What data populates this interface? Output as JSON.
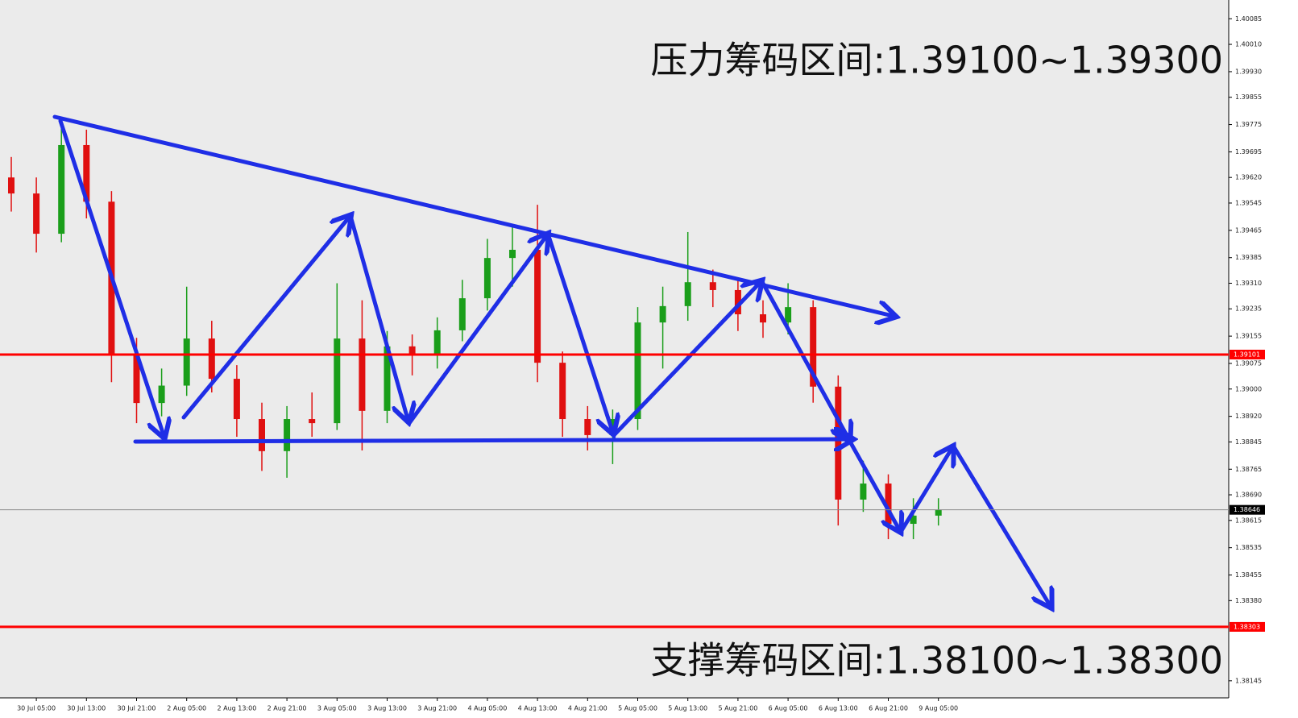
{
  "chart_data": {
    "type": "candlestick",
    "annotations": [
      "压力筹码区间:1.39100~1.39300",
      "支撑筹码区间:1.38100~1.38300"
    ],
    "categories": [
      null,
      "30 Jul 05:00",
      null,
      "30 Jul 13:00",
      null,
      "30 Jul 21:00",
      null,
      "2 Aug 05:00",
      null,
      "2 Aug 13:00",
      null,
      "2 Aug 21:00",
      null,
      "3 Aug 05:00",
      null,
      "3 Aug 13:00",
      null,
      "3 Aug 21:00",
      null,
      "4 Aug 05:00",
      null,
      "4 Aug 13:00",
      null,
      "4 Aug 21:00",
      null,
      "5 Aug 05:00",
      null,
      "5 Aug 13:00",
      null,
      "5 Aug 21:00",
      null,
      "6 Aug 05:00",
      null,
      "6 Aug 13:00",
      null,
      "6 Aug 21:00",
      null,
      "9 Aug 05:00"
    ],
    "open": [
      1.3962,
      1.39573,
      1.39455,
      1.39715,
      1.39549,
      1.39101,
      1.38959,
      1.3901,
      1.39148,
      1.3903,
      1.38912,
      1.38818,
      1.38912,
      1.389,
      1.39148,
      1.38936,
      1.39125,
      1.39101,
      1.39172,
      1.39266,
      1.39384,
      1.39408,
      1.39077,
      1.38912,
      1.38865,
      1.38912,
      1.39195,
      1.39243,
      1.39313,
      1.3929,
      1.39219,
      1.39195,
      1.3924,
      1.39007,
      1.38676,
      1.38723,
      1.38605,
      1.38629
    ],
    "high": [
      1.3968,
      1.3962,
      1.3979,
      1.3976,
      1.3958,
      1.3915,
      1.3906,
      1.393,
      1.392,
      1.3907,
      1.3896,
      1.3895,
      1.3899,
      1.3931,
      1.3926,
      1.3917,
      1.3916,
      1.3921,
      1.3932,
      1.3944,
      1.3948,
      1.3954,
      1.3911,
      1.3895,
      1.3894,
      1.3924,
      1.393,
      1.3946,
      1.3935,
      1.3932,
      1.3926,
      1.3931,
      1.3926,
      1.3904,
      1.3879,
      1.3875,
      1.3868,
      1.3868
    ],
    "low": [
      1.3952,
      1.394,
      1.3943,
      1.395,
      1.3902,
      1.389,
      1.3892,
      1.3898,
      1.3899,
      1.3886,
      1.3876,
      1.3874,
      1.3886,
      1.3888,
      1.3882,
      1.389,
      1.3904,
      1.3906,
      1.3914,
      1.3923,
      1.393,
      1.3902,
      1.3886,
      1.3882,
      1.3878,
      1.3888,
      1.3906,
      1.392,
      1.3924,
      1.3917,
      1.3915,
      1.3916,
      1.3896,
      1.386,
      1.3864,
      1.3856,
      1.3856,
      1.386
    ],
    "close": [
      1.39573,
      1.39455,
      1.39715,
      1.39549,
      1.39101,
      1.38959,
      1.3901,
      1.39148,
      1.3903,
      1.38912,
      1.38818,
      1.38912,
      1.389,
      1.39148,
      1.38936,
      1.39125,
      1.39101,
      1.39172,
      1.39266,
      1.39384,
      1.39408,
      1.39077,
      1.38912,
      1.38865,
      1.38912,
      1.39195,
      1.39243,
      1.39313,
      1.3929,
      1.39219,
      1.39195,
      1.3924,
      1.39007,
      1.38676,
      1.38723,
      1.38605,
      1.38629,
      1.38646
    ],
    "up_color": "#1a9e1a",
    "down_color": "#e01010",
    "ylim": [
      1.38095,
      1.4014
    ],
    "yticks": [
      {
        "value": 1.40085,
        "label": "1.40085"
      },
      {
        "value": 1.4001,
        "label": "1.40010"
      },
      {
        "value": 1.3993,
        "label": "1.39930"
      },
      {
        "value": 1.39855,
        "label": "1.39855"
      },
      {
        "value": 1.39775,
        "label": "1.39775"
      },
      {
        "value": 1.39695,
        "label": "1.39695"
      },
      {
        "value": 1.3962,
        "label": "1.39620"
      },
      {
        "value": 1.39545,
        "label": "1.39545"
      },
      {
        "value": 1.39465,
        "label": "1.39465"
      },
      {
        "value": 1.39385,
        "label": "1.39385"
      },
      {
        "value": 1.3931,
        "label": "1.39310"
      },
      {
        "value": 1.39235,
        "label": "1.39235"
      },
      {
        "value": 1.39155,
        "label": "1.39155"
      },
      {
        "value": 1.39075,
        "label": "1.39075"
      },
      {
        "value": 1.39,
        "label": "1.39000"
      },
      {
        "value": 1.3892,
        "label": "1.38920"
      },
      {
        "value": 1.38845,
        "label": "1.38845"
      },
      {
        "value": 1.38765,
        "label": "1.38765"
      },
      {
        "value": 1.3869,
        "label": "1.38690"
      },
      {
        "value": 1.38615,
        "label": "1.38615"
      },
      {
        "value": 1.38535,
        "label": "1.38535"
      },
      {
        "value": 1.38455,
        "label": "1.38455"
      },
      {
        "value": 1.3838,
        "label": "1.38380"
      },
      {
        "value": 1.38145,
        "label": "1.38145"
      }
    ],
    "levels": [
      {
        "value": 1.39101,
        "label": "1.39101",
        "color": "#ff0000"
      },
      {
        "value": 1.38303,
        "label": "1.38303",
        "color": "#ff0000"
      },
      {
        "value": 1.38646,
        "label": "1.38646",
        "color": "#000000"
      }
    ]
  }
}
